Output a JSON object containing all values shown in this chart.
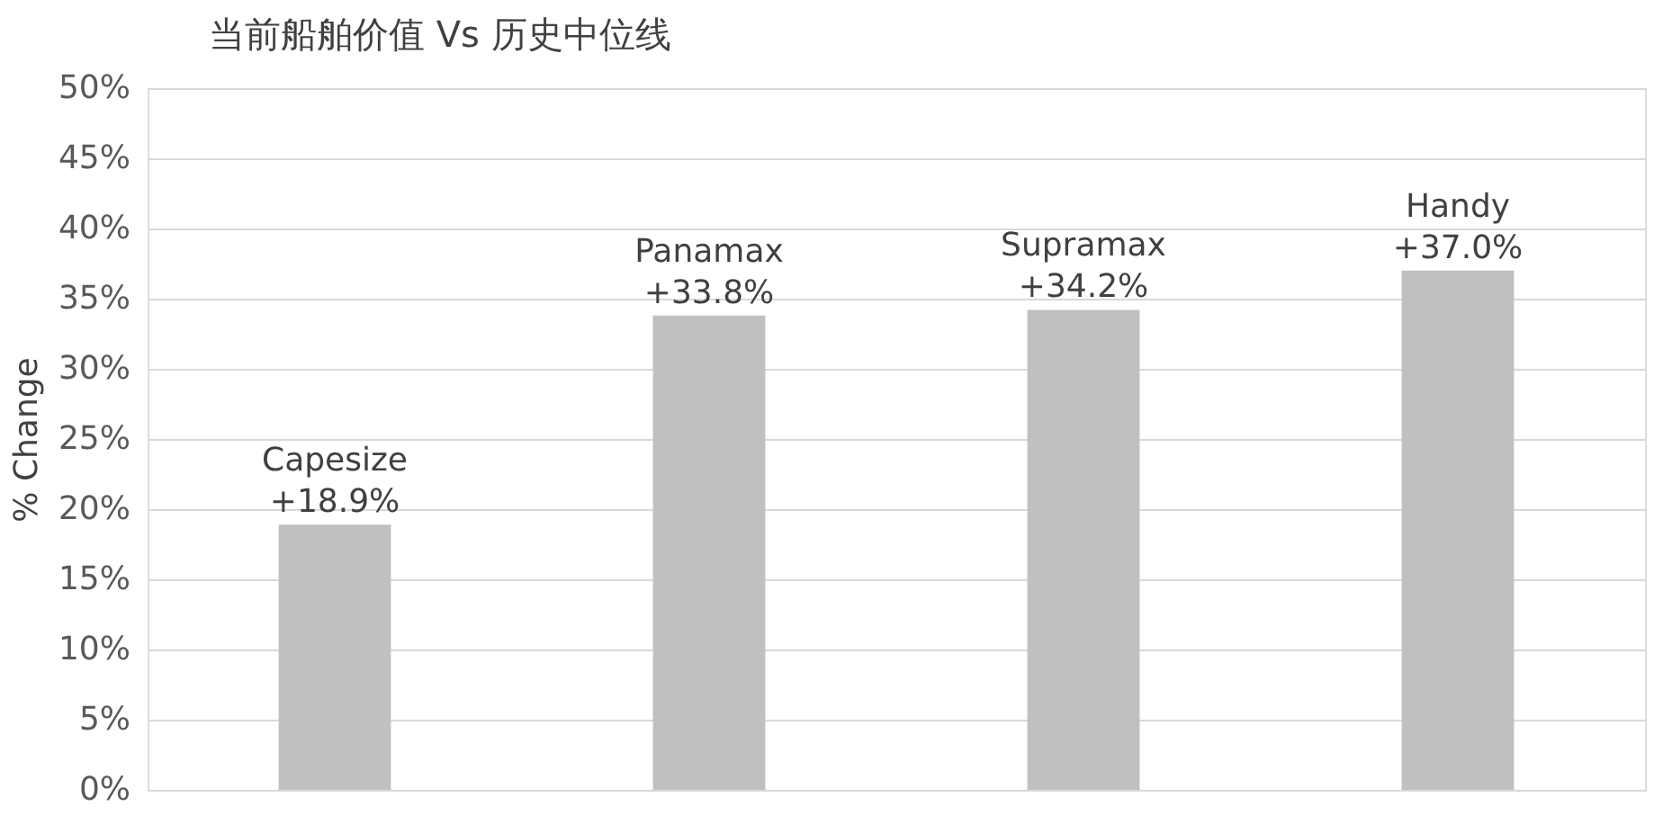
{
  "chart_data": {
    "type": "bar",
    "title": "当前船舶价值 Vs 历史中位线",
    "ylabel": "% Change",
    "categories": [
      "Capesize",
      "Panamax",
      "Supramax",
      "Handy"
    ],
    "values": [
      18.9,
      33.8,
      34.2,
      37.0
    ],
    "value_labels": [
      "+18.9%",
      "+33.8%",
      "+34.2%",
      "+37.0%"
    ],
    "color": "#c0c0c0",
    "ylim": [
      0,
      50
    ],
    "yticks": [
      {
        "value": 0,
        "label": "0%"
      },
      {
        "value": 5,
        "label": "5%"
      },
      {
        "value": 10,
        "label": "10%"
      },
      {
        "value": 15,
        "label": "15%"
      },
      {
        "value": 20,
        "label": "20%"
      },
      {
        "value": 25,
        "label": "25%"
      },
      {
        "value": 30,
        "label": "30%"
      },
      {
        "value": 35,
        "label": "35%"
      },
      {
        "value": 40,
        "label": "40%"
      },
      {
        "value": 45,
        "label": "45%"
      },
      {
        "value": 50,
        "label": "50%"
      }
    ],
    "grid": "y",
    "tick_labels": "y",
    "legend": false
  }
}
